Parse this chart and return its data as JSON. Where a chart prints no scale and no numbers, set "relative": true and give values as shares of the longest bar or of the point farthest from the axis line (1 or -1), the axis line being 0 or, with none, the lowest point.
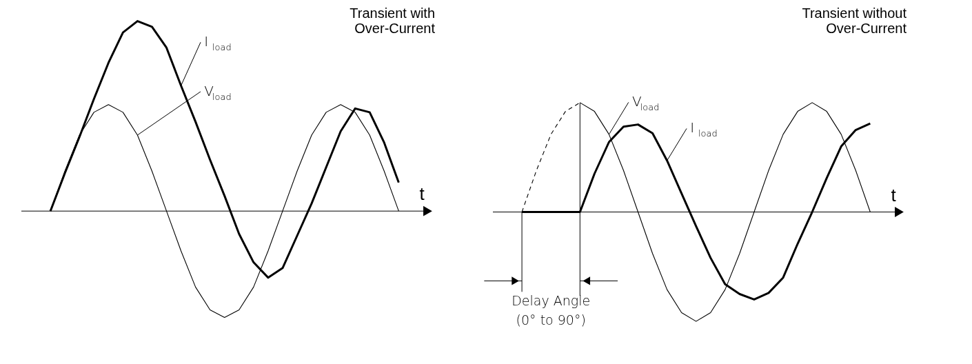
{
  "chart_data": [
    {
      "type": "line",
      "title": "Transient with Over-Current",
      "xlabel": "t",
      "relative": true,
      "categories": [
        null,
        null,
        null,
        null,
        null,
        null,
        null,
        null,
        null,
        null,
        null,
        null,
        null,
        null,
        null,
        null,
        null,
        null,
        null,
        null,
        null,
        null,
        null,
        null,
        null
      ],
      "series": [
        {
          "name": "V$_{load}$",
          "color": "#000000",
          "values": [
            0,
            0.21,
            0.4,
            0.52,
            0.56,
            0.52,
            0.4,
            0.21,
            0,
            -0.21,
            -0.4,
            -0.52,
            -0.56,
            -0.52,
            -0.4,
            -0.21,
            0,
            0.21,
            0.4,
            0.52,
            0.56,
            0.52,
            0.4,
            0.21,
            0
          ]
        },
        {
          "name": "I$_{load}$",
          "color": "#000000",
          "values": [
            0,
            0.2,
            0.39,
            0.59,
            0.78,
            0.94,
            1,
            0.97,
            0.86,
            0.66,
            0.47,
            0.27,
            0.08,
            -0.12,
            -0.27,
            -0.35,
            -0.3,
            -0.13,
            0.04,
            0.23,
            0.42,
            0.54,
            0.52,
            0.36,
            0.15
          ]
        }
      ]
    },
    {
      "type": "line",
      "title": "Transient without Over-Current",
      "xlabel": "t",
      "relative": true,
      "categories": [
        null,
        null,
        null,
        null,
        null,
        null,
        null,
        null,
        null,
        null,
        null,
        null,
        null,
        null,
        null,
        null,
        null,
        null,
        null,
        null,
        null,
        null,
        null,
        null,
        null
      ],
      "series": [
        {
          "color": "#000000",
          "line_style": "dashed",
          "values": [
            0,
            0.38,
            0.71,
            0.92,
            1,
            null,
            null,
            null,
            null,
            null,
            null,
            null,
            null,
            null,
            null,
            null,
            null,
            null,
            null,
            null,
            null,
            null,
            null,
            null,
            null
          ]
        },
        {
          "name": "V$_{load}$",
          "color": "#000000",
          "values": [
            null,
            null,
            null,
            null,
            1,
            0.92,
            0.71,
            0.38,
            0,
            -0.38,
            -0.71,
            -0.92,
            -1,
            -0.92,
            -0.71,
            -0.38,
            0,
            0.38,
            0.71,
            0.92,
            1,
            0.92,
            0.71,
            0.38,
            0
          ]
        },
        {
          "name": "I$_{load}$",
          "color": "#000000",
          "values": [
            0,
            0,
            0,
            0,
            0,
            0.35,
            0.64,
            0.78,
            0.8,
            0.72,
            0.47,
            0.17,
            -0.13,
            -0.42,
            -0.66,
            -0.75,
            -0.8,
            -0.74,
            -0.6,
            -0.29,
            0,
            0.31,
            0.6,
            0.75,
            0.81
          ]
        }
      ],
      "annotations": [
        "Delay Angle (0° to 90°)"
      ]
    }
  ]
}
